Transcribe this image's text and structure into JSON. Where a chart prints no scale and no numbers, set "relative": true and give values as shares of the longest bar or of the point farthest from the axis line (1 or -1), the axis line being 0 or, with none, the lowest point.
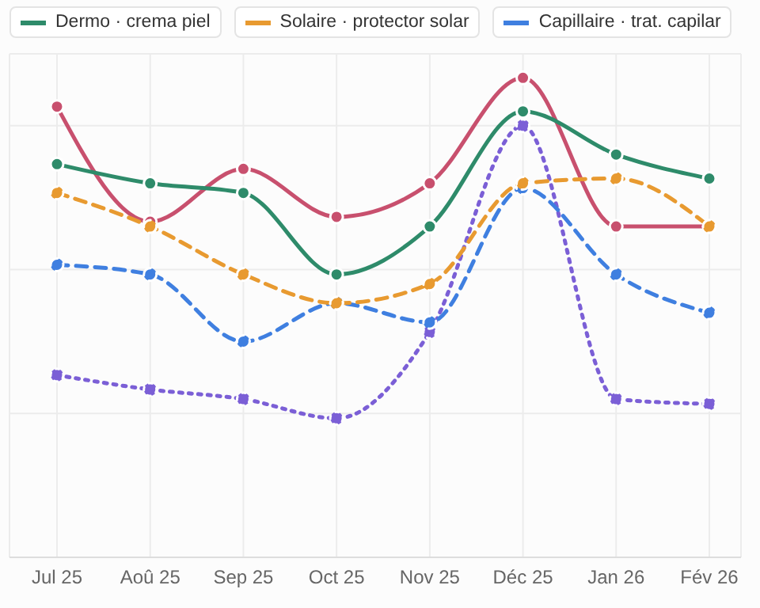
{
  "chart_data": {
    "type": "line",
    "relative": true,
    "categories": [
      "Jul 25",
      "Aoû 25",
      "Sep 25",
      "Oct 25",
      "Nov 25",
      "Déc 25",
      "Jan 26",
      "Fév 26"
    ],
    "series": [
      {
        "name": "Dermo · crema piel",
        "color": "#2e8b6a",
        "line_style": "solid",
        "values": [
          0.82,
          0.78,
          0.76,
          0.59,
          0.69,
          0.93,
          0.84,
          0.79
        ]
      },
      {
        "name": "Solaire · protector solar",
        "color": "#e89a30",
        "line_style": "dashed",
        "values": [
          0.76,
          0.69,
          0.59,
          0.53,
          0.57,
          0.78,
          0.79,
          0.69
        ]
      },
      {
        "name": "Capillaire · trat. capilar",
        "color": "#3f7fe0",
        "line_style": "dashed",
        "values": [
          0.61,
          0.59,
          0.45,
          0.53,
          0.49,
          0.77,
          0.59,
          0.51
        ]
      },
      {
        "color": "#c8506e",
        "line_style": "solid",
        "values": [
          0.94,
          0.7,
          0.81,
          0.71,
          0.78,
          1,
          0.69,
          0.69
        ]
      },
      {
        "color": "#7b5fd6",
        "line_style": "dotted",
        "values": [
          0.38,
          0.35,
          0.33,
          0.29,
          0.47,
          0.9,
          0.33,
          0.32
        ]
      }
    ],
    "grid": true,
    "legend": "top left",
    "marker": "circle"
  }
}
